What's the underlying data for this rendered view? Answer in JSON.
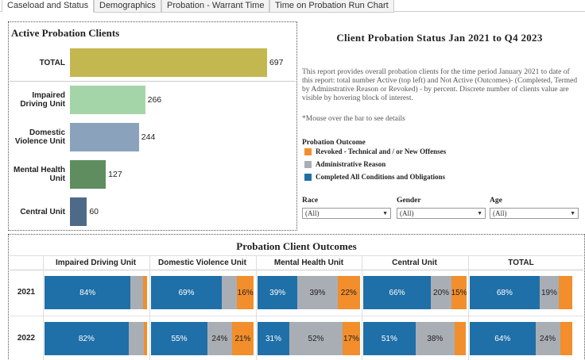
{
  "tabs": [
    "Caseload and Status",
    "Demographics",
    "Probation - Warrant Time",
    "Time on Probation Run Chart"
  ],
  "header": {
    "title": "Client Probation Status Jan 2021 to Q4 2023",
    "description": "This report provides overall probation clients for the time period January 2021 to date of this report: total number Active (top left) and Not Active (Outcomes)- (Completed, Termed by Adminstrative Reason or Revoked) - by percent. Discrete number of clients value are visible by hovering block of interest.",
    "note": "*Mouse over the bar to see details"
  },
  "filters": [
    {
      "label": "Race",
      "value": "(All)"
    },
    {
      "label": "Gender",
      "value": "(All)"
    },
    {
      "label": "Age",
      "value": "(All)"
    }
  ],
  "chart_data": [
    {
      "type": "bar",
      "orientation": "horizontal",
      "title": "Active Probation Clients",
      "categories": [
        "TOTAL",
        "Impaired Driving Unit",
        "Domestic Violence Unit",
        "Mental Health Unit",
        "Central Unit"
      ],
      "values": [
        697,
        266,
        244,
        127,
        60
      ],
      "colors": [
        "#c3b750",
        "#a4d5a9",
        "#8aa2bc",
        "#5f8d5f",
        "#4e6a89"
      ],
      "xlim": [
        0,
        800
      ]
    },
    {
      "type": "stacked_bar_100",
      "title": "Probation Client Outcomes",
      "legend_title": "Probation Outcome",
      "categories": [
        "2021",
        "2022"
      ],
      "panels": [
        "Impaired Driving Unit",
        "Domestic Violence Unit",
        "Mental Health Unit",
        "Central Unit",
        "TOTAL"
      ],
      "xlim": [
        0,
        100
      ],
      "series": [
        {
          "name": "Revoked - Technical and / or New Offenses",
          "color": "#f28e2b",
          "values": [
            [
              4,
              3
            ],
            [
              16,
              21
            ],
            [
              22,
              17
            ],
            [
              15,
              11
            ],
            [
              13,
              12
            ]
          ],
          "value_labels": [
            [
              null,
              null
            ],
            [
              "16%",
              "21%"
            ],
            [
              "22%",
              "17%"
            ],
            [
              "15%",
              null
            ],
            [
              null,
              null
            ]
          ]
        },
        {
          "name": "Administrative Reason",
          "color": "#a9aeb5",
          "values": [
            [
              12,
              15
            ],
            [
              15,
              24
            ],
            [
              39,
              52
            ],
            [
              20,
              38
            ],
            [
              19,
              24
            ]
          ],
          "value_labels": [
            [
              null,
              null
            ],
            [
              null,
              "24%"
            ],
            [
              "39%",
              "52%"
            ],
            [
              "20%",
              "38%"
            ],
            [
              "19%",
              "24%"
            ]
          ]
        },
        {
          "name": "Completed All Conditions and Obligations",
          "color": "#1f6fa8",
          "values": [
            [
              84,
              82
            ],
            [
              69,
              55
            ],
            [
              39,
              31
            ],
            [
              66,
              51
            ],
            [
              68,
              64
            ]
          ],
          "value_labels": [
            [
              "84%",
              "82%"
            ],
            [
              "69%",
              "55%"
            ],
            [
              "39%",
              "31%"
            ],
            [
              "66%",
              "51%"
            ],
            [
              "68%",
              "64%"
            ]
          ]
        }
      ]
    }
  ]
}
